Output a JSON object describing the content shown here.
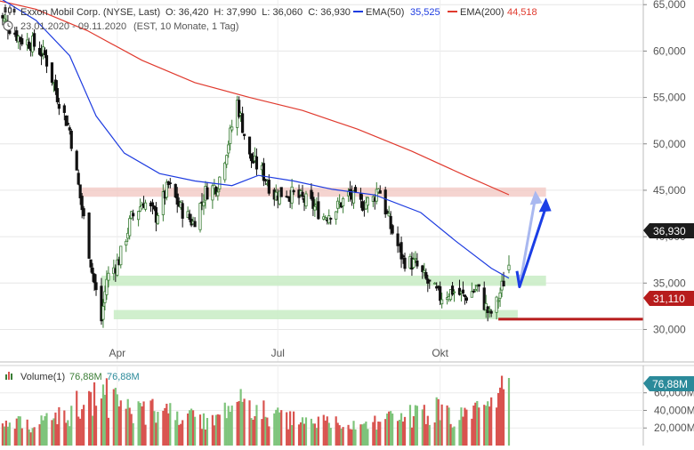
{
  "header": {
    "icon": "candlestick-chart-icon",
    "name": "Exxon Mobil Corp. (NYSE, Last)",
    "ohlc": "O: 36,420  H: 37,990  L: 36,060  C: 36,930",
    "ema50_label": "EMA(50)",
    "ema50_value": "35,525",
    "ema200_label": "EMA(200)",
    "ema200_value": "44,518",
    "range": "23.01.2020 - 09.11.2020",
    "range_detail": "(EST, 10 Monate, 1 Tag)",
    "clock_icon": "clock-icon"
  },
  "volume_header": {
    "label": "Volume(1)",
    "value1": "76,88M",
    "value2": "76,88M"
  },
  "badges": {
    "last_price": "36,930",
    "support": "31,110",
    "volume": "76,88M"
  },
  "colors": {
    "up": "#3a7d35",
    "down": "#111111",
    "ema50": "#1e3ce0",
    "ema200": "#e03a2e",
    "zone_red": "#f2c6c0",
    "zone_green": "#c8ecc4",
    "support_line": "#b71c1c",
    "badge_dark": "#1c1c1c",
    "badge_red": "#b71c1c",
    "badge_volume": "#2b8a9a",
    "arrow_main": "#1b3ee6",
    "arrow_light": "#a9b8f0",
    "volume_up": "#7ec47b",
    "volume_down": "#d9534f"
  },
  "chart_data": {
    "type": "candlestick",
    "price_axis": {
      "ticks": [
        "65,000",
        "60,000",
        "55,000",
        "50,000",
        "45,000",
        "40,000",
        "35,000",
        "30,000"
      ],
      "tick_values": [
        65,
        60,
        55,
        50,
        45,
        40,
        35,
        30
      ],
      "range": [
        26.5,
        65.5
      ]
    },
    "x_axis": {
      "ticks": [
        "Apr",
        "Jul",
        "Okt"
      ],
      "tick_dates": [
        "2020-04-01",
        "2020-07-01",
        "2020-10-01"
      ],
      "range": [
        "2020-01-23",
        "2020-11-09"
      ]
    },
    "volume_axis": {
      "ticks": [
        "60,000M",
        "40,000M",
        "20,000M"
      ],
      "tick_values": [
        60,
        40,
        20
      ],
      "range": [
        0,
        85
      ]
    },
    "close_series": [
      [
        "2020-01-23",
        64.2
      ],
      [
        "2020-01-30",
        62.8
      ],
      [
        "2020-02-06",
        61.3
      ],
      [
        "2020-02-13",
        60.8
      ],
      [
        "2020-02-20",
        59.5
      ],
      [
        "2020-02-27",
        55.2
      ],
      [
        "2020-03-05",
        51.5
      ],
      [
        "2020-03-12",
        43.0
      ],
      [
        "2020-03-19",
        35.0
      ],
      [
        "2020-03-23",
        31.0
      ],
      [
        "2020-03-26",
        35.5
      ],
      [
        "2020-04-02",
        37.5
      ],
      [
        "2020-04-09",
        42.0
      ],
      [
        "2020-04-16",
        43.8
      ],
      [
        "2020-04-23",
        42.2
      ],
      [
        "2020-04-30",
        45.5
      ],
      [
        "2020-05-07",
        43.0
      ],
      [
        "2020-05-14",
        41.5
      ],
      [
        "2020-05-21",
        44.8
      ],
      [
        "2020-05-28",
        45.6
      ],
      [
        "2020-06-04",
        51.0
      ],
      [
        "2020-06-08",
        54.5
      ],
      [
        "2020-06-15",
        48.5
      ],
      [
        "2020-06-22",
        47.0
      ],
      [
        "2020-06-29",
        44.5
      ],
      [
        "2020-07-06",
        44.8
      ],
      [
        "2020-07-13",
        44.2
      ],
      [
        "2020-07-20",
        43.5
      ],
      [
        "2020-07-27",
        42.2
      ],
      [
        "2020-08-03",
        43.0
      ],
      [
        "2020-08-10",
        44.5
      ],
      [
        "2020-08-17",
        43.5
      ],
      [
        "2020-08-24",
        44.0
      ],
      [
        "2020-08-27",
        45.5
      ],
      [
        "2020-09-03",
        41.0
      ],
      [
        "2020-09-10",
        37.5
      ],
      [
        "2020-09-17",
        37.0
      ],
      [
        "2020-09-24",
        35.0
      ],
      [
        "2020-10-01",
        33.5
      ],
      [
        "2020-10-08",
        34.2
      ],
      [
        "2020-10-15",
        33.5
      ],
      [
        "2020-10-22",
        34.5
      ],
      [
        "2020-10-29",
        31.5
      ],
      [
        "2020-11-02",
        32.8
      ],
      [
        "2020-11-09",
        36.93
      ]
    ],
    "ema200_series": [
      [
        "2020-01-23",
        65.5
      ],
      [
        "2020-02-15",
        64.5
      ],
      [
        "2020-03-15",
        62.2
      ],
      [
        "2020-04-15",
        59.0
      ],
      [
        "2020-05-15",
        56.6
      ],
      [
        "2020-06-15",
        55.0
      ],
      [
        "2020-07-15",
        53.6
      ],
      [
        "2020-08-15",
        51.6
      ],
      [
        "2020-09-15",
        49.2
      ],
      [
        "2020-10-15",
        46.6
      ],
      [
        "2020-11-09",
        44.518
      ]
    ],
    "ema50_series": [
      [
        "2020-01-23",
        66.0
      ],
      [
        "2020-02-15",
        63.3
      ],
      [
        "2020-03-05",
        59.5
      ],
      [
        "2020-03-20",
        53.0
      ],
      [
        "2020-04-05",
        49.0
      ],
      [
        "2020-04-25",
        46.8
      ],
      [
        "2020-05-15",
        46.0
      ],
      [
        "2020-06-05",
        45.5
      ],
      [
        "2020-06-20",
        46.6
      ],
      [
        "2020-07-10",
        46.0
      ],
      [
        "2020-08-01",
        45.1
      ],
      [
        "2020-08-25",
        44.5
      ],
      [
        "2020-09-20",
        42.6
      ],
      [
        "2020-10-10",
        39.5
      ],
      [
        "2020-10-30",
        36.6
      ],
      [
        "2020-11-09",
        35.525
      ]
    ],
    "zones": [
      {
        "color": "red",
        "from": "2020-03-12",
        "to": "2020-11-30",
        "low": 44.3,
        "high": 45.3
      },
      {
        "color": "green",
        "from": "2020-03-23",
        "to": "2020-11-30",
        "low": 34.7,
        "high": 35.8
      },
      {
        "color": "green",
        "from": "2020-03-30",
        "to": "2020-11-14",
        "low": 31.1,
        "high": 32.1
      }
    ],
    "support_level": 31.11,
    "projection": {
      "path": [
        [
          "2020-11-09",
          36.3
        ],
        [
          "2020-11-15",
          34.6
        ],
        [
          "2020-11-30",
          44.0
        ]
      ]
    },
    "volume_series": [
      [
        "2020-01-23",
        22
      ],
      [
        "2020-02-06",
        25
      ],
      [
        "2020-02-20",
        28
      ],
      [
        "2020-03-05",
        40
      ],
      [
        "2020-03-12",
        55
      ],
      [
        "2020-03-19",
        62
      ],
      [
        "2020-03-26",
        58
      ],
      [
        "2020-04-02",
        48
      ],
      [
        "2020-04-16",
        42
      ],
      [
        "2020-04-30",
        38
      ],
      [
        "2020-05-14",
        32
      ],
      [
        "2020-05-28",
        30
      ],
      [
        "2020-06-08",
        52
      ],
      [
        "2020-06-22",
        40
      ],
      [
        "2020-07-06",
        30
      ],
      [
        "2020-07-20",
        27
      ],
      [
        "2020-08-03",
        26
      ],
      [
        "2020-08-17",
        24
      ],
      [
        "2020-08-31",
        30
      ],
      [
        "2020-09-14",
        35
      ],
      [
        "2020-09-28",
        42
      ],
      [
        "2020-10-12",
        34
      ],
      [
        "2020-10-26",
        40
      ],
      [
        "2020-11-02",
        48
      ],
      [
        "2020-11-09",
        76.88
      ]
    ]
  }
}
